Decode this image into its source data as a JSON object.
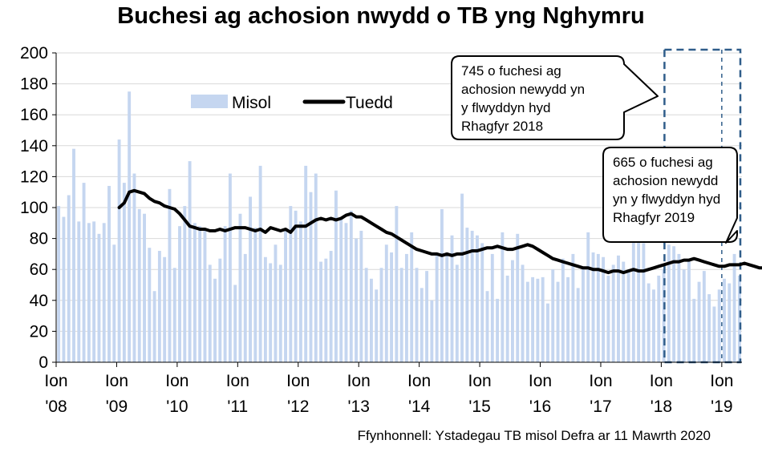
{
  "title": "Buchesi ag achosion nwydd o TB yng Nghymru",
  "source": "Ffynhonnell: Ystadegau TB misol Defra ar 11 Mawrth 2020",
  "colors": {
    "bar": "#c5d6f0",
    "line": "#000000",
    "highlight_box": "#2f5d8a",
    "grid": "#d9d9d9"
  },
  "chart_data": {
    "type": "bar",
    "title": "Buchesi ag achosion nwydd o TB yng Nghymru",
    "ylim": [
      0,
      200
    ],
    "yticks": [
      0,
      20,
      40,
      60,
      80,
      100,
      120,
      140,
      160,
      180,
      200
    ],
    "xtick_labels": [
      {
        "line1": "Ion",
        "line2": "'08"
      },
      {
        "line1": "Ion",
        "line2": "'09"
      },
      {
        "line1": "Ion",
        "line2": "'10"
      },
      {
        "line1": "Ion",
        "line2": "'11"
      },
      {
        "line1": "Ion",
        "line2": "'12"
      },
      {
        "line1": "Ion",
        "line2": "'13"
      },
      {
        "line1": "Ion",
        "line2": "'14"
      },
      {
        "line1": "Ion",
        "line2": "'15"
      },
      {
        "line1": "Ion",
        "line2": "'16"
      },
      {
        "line1": "Ion",
        "line2": "'17"
      },
      {
        "line1": "Ion",
        "line2": "'18"
      },
      {
        "line1": "Ion",
        "line2": "'19"
      }
    ],
    "legend": {
      "position": "top-left",
      "bar_label": "Misol",
      "line_label": "Tuedd"
    },
    "series": [
      {
        "name": "Misol",
        "type": "bar",
        "values": [
          101,
          94,
          108,
          138,
          91,
          116,
          90,
          91,
          83,
          90,
          114,
          76,
          144,
          116,
          175,
          122,
          99,
          96,
          74,
          46,
          72,
          68,
          112,
          61,
          88,
          101,
          130,
          90,
          88,
          85,
          63,
          54,
          67,
          88,
          122,
          50,
          96,
          70,
          107,
          87,
          127,
          68,
          64,
          76,
          63,
          86,
          101,
          98,
          91,
          127,
          110,
          122,
          65,
          67,
          72,
          111,
          93,
          90,
          98,
          80,
          85,
          61,
          54,
          47,
          61,
          76,
          71,
          101,
          61,
          70,
          84,
          61,
          48,
          59,
          40,
          70,
          99,
          71,
          82,
          63,
          109,
          87,
          85,
          82,
          77,
          46,
          70,
          41,
          84,
          56,
          66,
          83,
          63,
          52,
          55,
          54,
          55,
          38,
          60,
          52,
          67,
          55,
          70,
          48,
          62,
          84,
          71,
          70,
          68,
          56,
          63,
          69,
          65,
          59,
          88,
          81,
          77,
          51,
          47,
          56,
          60,
          76,
          75,
          70,
          60,
          66,
          41,
          52,
          59,
          44,
          36,
          47,
          54,
          51,
          70,
          56
        ]
      },
      {
        "name": "Tuedd",
        "type": "line",
        "start_index": 12,
        "values": [
          100,
          103,
          110,
          111,
          110,
          109,
          106,
          104,
          103,
          101,
          100,
          99,
          96,
          92,
          88,
          87,
          86,
          86,
          85,
          85,
          86,
          85,
          86,
          87,
          87,
          87,
          86,
          85,
          86,
          84,
          87,
          86,
          85,
          86,
          84,
          88,
          88,
          88,
          90,
          92,
          93,
          92,
          93,
          92,
          93,
          95,
          96,
          94,
          94,
          92,
          90,
          88,
          86,
          84,
          83,
          81,
          79,
          77,
          75,
          73,
          72,
          71,
          70,
          70,
          69,
          70,
          69,
          70,
          70,
          71,
          72,
          72,
          73,
          74,
          74,
          75,
          74,
          73,
          73,
          74,
          75,
          76,
          75,
          73,
          71,
          69,
          67,
          66,
          65,
          64,
          63,
          62,
          61,
          61,
          60,
          60,
          59,
          58,
          59,
          59,
          58,
          59,
          60,
          59,
          59,
          60,
          61,
          62,
          63,
          64,
          65,
          65,
          66,
          66,
          67,
          66,
          65,
          64,
          63,
          62,
          62,
          63,
          63,
          63,
          64,
          63,
          62,
          61,
          61,
          61,
          60,
          59,
          58,
          57,
          57,
          56
        ]
      }
    ],
    "annotations": [
      {
        "lines": [
          "745 o fuchesi ag",
          "achosion newydd yn",
          "y flwyddyn hyd",
          "Rhagfyr 2018"
        ]
      },
      {
        "lines": [
          "665 o fuchesi ag",
          "achosion newydd",
          "yn y flwyddyn hyd",
          "Rhagfyr 2019"
        ]
      }
    ]
  }
}
